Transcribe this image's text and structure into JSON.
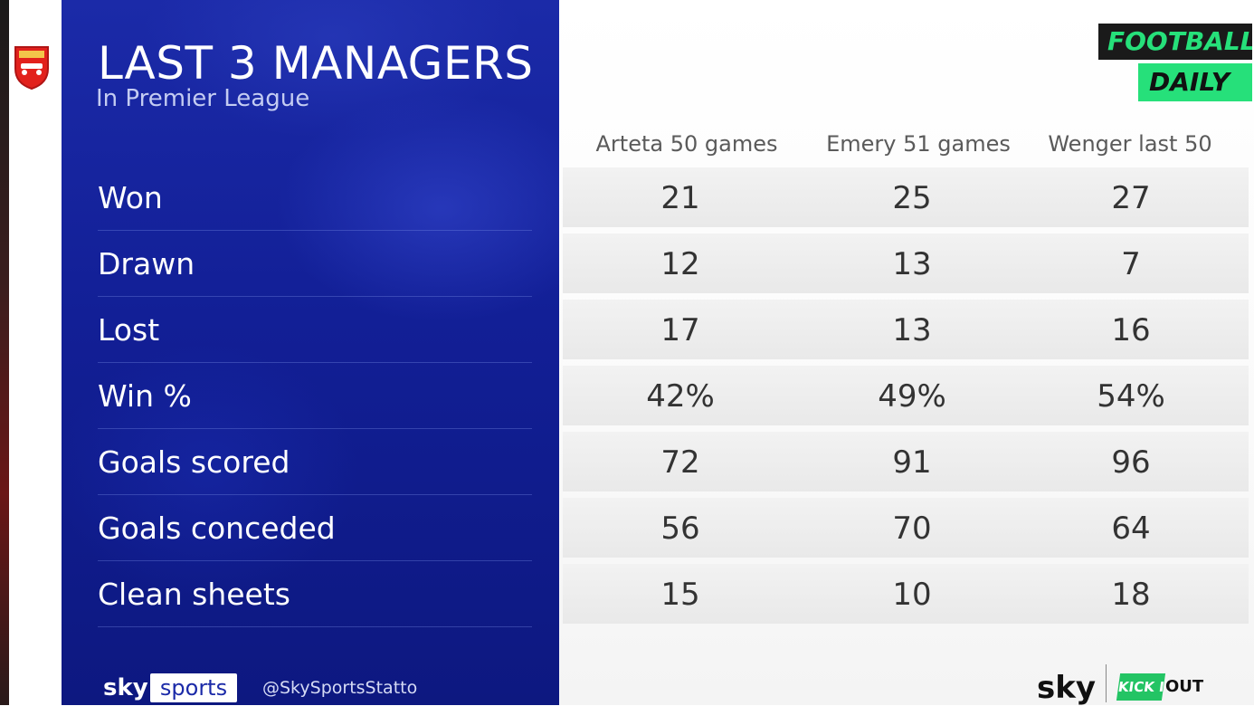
{
  "title": "LAST 3 MANAGERS",
  "subtitle": "In Premier League",
  "badge": {
    "line1": "FOOTBALL",
    "line2": "DAILY"
  },
  "columns": [
    "Arteta 50 games",
    "Emery 51 games",
    "Wenger last 50"
  ],
  "rows": [
    {
      "label": "Won",
      "values": [
        "21",
        "25",
        "27"
      ]
    },
    {
      "label": "Drawn",
      "values": [
        "12",
        "13",
        "7"
      ]
    },
    {
      "label": "Lost",
      "values": [
        "17",
        "13",
        "16"
      ]
    },
    {
      "label": "Win %",
      "values": [
        "42%",
        "49%",
        "54%"
      ]
    },
    {
      "label": "Goals scored",
      "values": [
        "72",
        "91",
        "96"
      ]
    },
    {
      "label": "Goals conceded",
      "values": [
        "56",
        "70",
        "64"
      ]
    },
    {
      "label": "Clean sheets",
      "values": [
        "15",
        "10",
        "18"
      ]
    }
  ],
  "footer": {
    "sky_word": "sky",
    "sports_word": "sports",
    "handle": "@SkySportsStatto",
    "sky_right": "sky",
    "kick_word": "KICK IT",
    "out_word": "OUT"
  },
  "colors": {
    "panel_blue": "#121f96",
    "accent_green": "#26e07a",
    "club_red": "#e2211c"
  },
  "icons": {
    "crest": "arsenal-crest-icon"
  }
}
